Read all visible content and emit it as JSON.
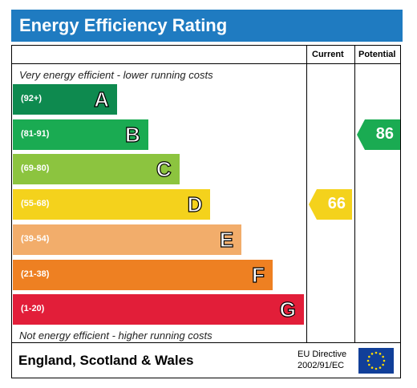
{
  "title": "Energy Efficiency Rating",
  "columns": {
    "current": "Current",
    "potential": "Potential"
  },
  "captions": {
    "top": "Very energy efficient - lower running costs",
    "bottom": "Not energy efficient - higher running costs"
  },
  "chart_data": {
    "type": "bar",
    "bands": [
      {
        "range": "(92+)",
        "letter": "A",
        "min": 92,
        "max": 100,
        "color": "#0e8a4f"
      },
      {
        "range": "(81-91)",
        "letter": "B",
        "min": 81,
        "max": 91,
        "color": "#1aab52"
      },
      {
        "range": "(69-80)",
        "letter": "C",
        "min": 69,
        "max": 80,
        "color": "#8cc43f"
      },
      {
        "range": "(55-68)",
        "letter": "D",
        "min": 55,
        "max": 68,
        "color": "#f4d21c"
      },
      {
        "range": "(39-54)",
        "letter": "E",
        "min": 39,
        "max": 54,
        "color": "#f2ad6b"
      },
      {
        "range": "(21-38)",
        "letter": "F",
        "min": 21,
        "max": 38,
        "color": "#ee8022"
      },
      {
        "range": "(1-20)",
        "letter": "G",
        "min": 1,
        "max": 20,
        "color": "#e21e39"
      }
    ],
    "current": {
      "value": "66",
      "band": "D",
      "color": "#f4d21c"
    },
    "potential": {
      "value": "86",
      "band": "B",
      "color": "#1aab52"
    }
  },
  "footer": {
    "region": "England, Scotland & Wales",
    "directive_line1": "EU Directive",
    "directive_line2": "2002/91/EC",
    "flag_icon": "eu-flag-icon"
  }
}
